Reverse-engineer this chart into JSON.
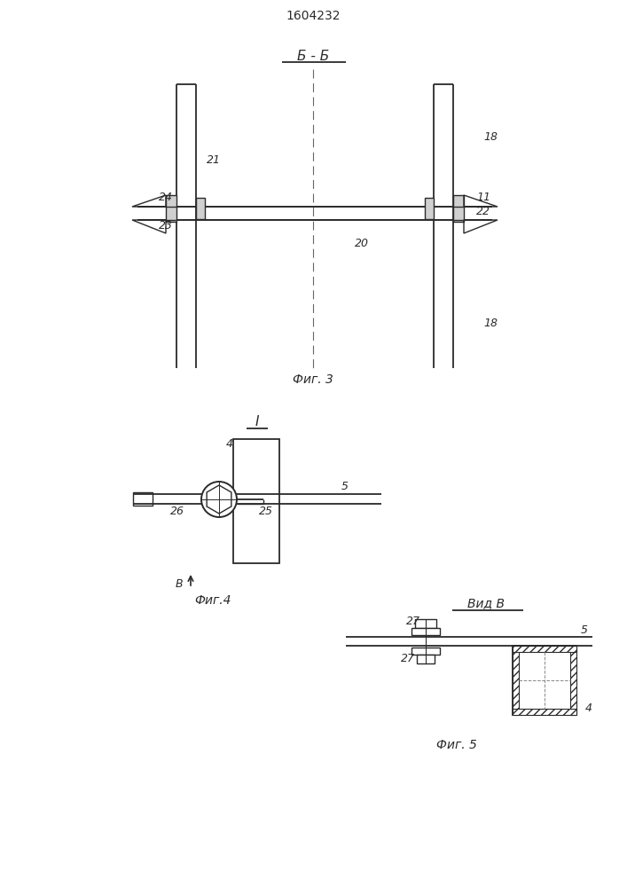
{
  "title": "1604232",
  "bg_color": "#ffffff",
  "line_color": "#2a2a2a",
  "fig3_label": "Фиг. 3",
  "fig4_label": "Фиг.4",
  "fig5_label": "Фиг. 5",
  "section_label": "Б - Б",
  "view_label": "Вид В",
  "view_arrow_label": "В"
}
